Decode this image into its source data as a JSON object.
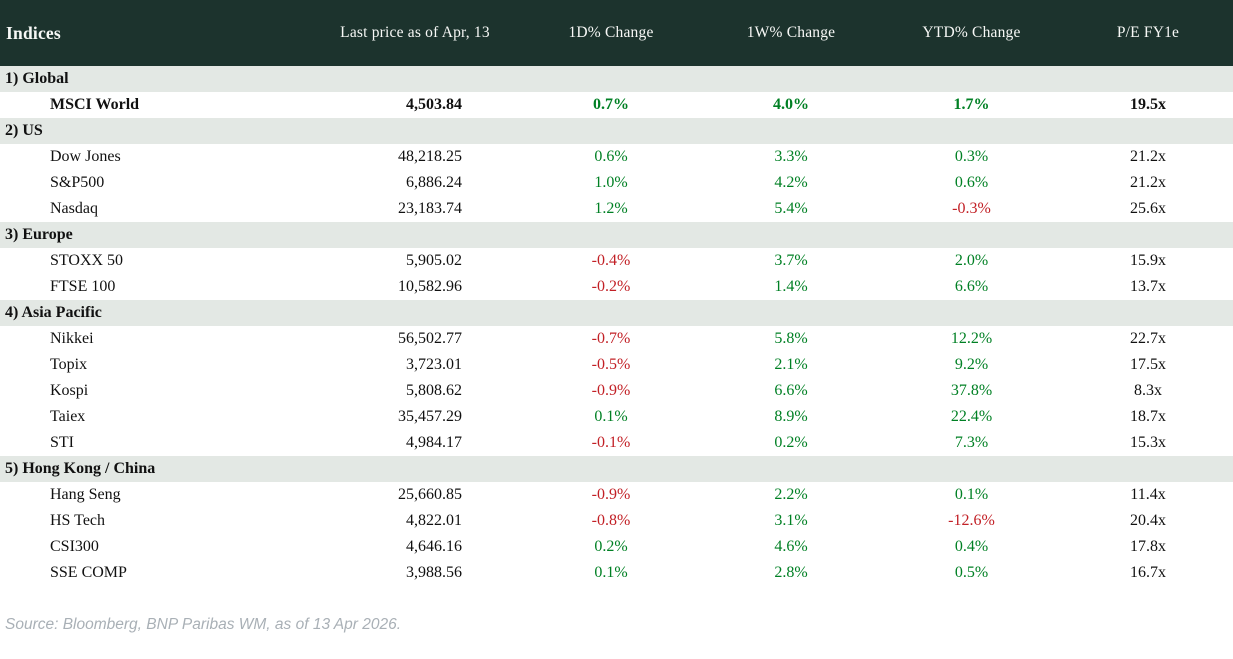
{
  "header": {
    "title": "Indices",
    "columns": [
      "Last price as of Apr, 13",
      "1D% Change",
      "1W% Change",
      "YTD% Change",
      "P/E FY1e"
    ]
  },
  "sections": [
    {
      "label": "1) Global",
      "rows": [
        {
          "name": "MSCI World",
          "bold": true,
          "price": "4,503.84",
          "d1": "0.7%",
          "w1": "4.0%",
          "ytd": "1.7%",
          "pe": "19.5x"
        }
      ]
    },
    {
      "label": "2) US",
      "rows": [
        {
          "name": "Dow Jones",
          "bold": false,
          "price": "48,218.25",
          "d1": "0.6%",
          "w1": "3.3%",
          "ytd": "0.3%",
          "pe": "21.2x"
        },
        {
          "name": "S&P500",
          "bold": false,
          "price": "6,886.24",
          "d1": "1.0%",
          "w1": "4.2%",
          "ytd": "0.6%",
          "pe": "21.2x"
        },
        {
          "name": "Nasdaq",
          "bold": false,
          "price": "23,183.74",
          "d1": "1.2%",
          "w1": "5.4%",
          "ytd": "-0.3%",
          "pe": "25.6x"
        }
      ]
    },
    {
      "label": "3) Europe",
      "rows": [
        {
          "name": "STOXX 50",
          "bold": false,
          "price": "5,905.02",
          "d1": "-0.4%",
          "w1": "3.7%",
          "ytd": "2.0%",
          "pe": "15.9x"
        },
        {
          "name": "FTSE 100",
          "bold": false,
          "price": "10,582.96",
          "d1": "-0.2%",
          "w1": "1.4%",
          "ytd": "6.6%",
          "pe": "13.7x"
        }
      ]
    },
    {
      "label": "4) Asia Pacific",
      "rows": [
        {
          "name": "Nikkei",
          "bold": false,
          "price": "56,502.77",
          "d1": "-0.7%",
          "w1": "5.8%",
          "ytd": "12.2%",
          "pe": "22.7x"
        },
        {
          "name": "Topix",
          "bold": false,
          "price": "3,723.01",
          "d1": "-0.5%",
          "w1": "2.1%",
          "ytd": "9.2%",
          "pe": "17.5x"
        },
        {
          "name": "Kospi",
          "bold": false,
          "price": "5,808.62",
          "d1": "-0.9%",
          "w1": "6.6%",
          "ytd": "37.8%",
          "pe": "8.3x"
        },
        {
          "name": "Taiex",
          "bold": false,
          "price": "35,457.29",
          "d1": "0.1%",
          "w1": "8.9%",
          "ytd": "22.4%",
          "pe": "18.7x"
        },
        {
          "name": "STI",
          "bold": false,
          "price": "4,984.17",
          "d1": "-0.1%",
          "w1": "0.2%",
          "ytd": "7.3%",
          "pe": "15.3x"
        }
      ]
    },
    {
      "label": "5) Hong Kong / China",
      "rows": [
        {
          "name": "Hang Seng",
          "bold": false,
          "price": "25,660.85",
          "d1": "-0.9%",
          "w1": "2.2%",
          "ytd": "0.1%",
          "pe": "11.4x"
        },
        {
          "name": "HS Tech",
          "bold": false,
          "price": "4,822.01",
          "d1": "-0.8%",
          "w1": "3.1%",
          "ytd": "-12.6%",
          "pe": "20.4x"
        },
        {
          "name": "CSI300",
          "bold": false,
          "price": "4,646.16",
          "d1": "0.2%",
          "w1": "4.6%",
          "ytd": "0.4%",
          "pe": "17.8x"
        },
        {
          "name": "SSE COMP",
          "bold": false,
          "price": "3,988.56",
          "d1": "0.1%",
          "w1": "2.8%",
          "ytd": "0.5%",
          "pe": "16.7x"
        }
      ]
    }
  ],
  "footer": {
    "source": "Source: Bloomberg, BNP Paribas WM, as of 13 Apr 2026."
  },
  "colors": {
    "header_bg": "#1c332d",
    "band_bg": "#e3e8e4",
    "positive": "#008024",
    "negative": "#c22026",
    "header_text": "#f7f8f6",
    "body_text": "#111111",
    "footer_text": "#a9b0b6"
  },
  "chart_data": {
    "type": "table",
    "title": "Indices",
    "columns": [
      "Indices",
      "Last price as of Apr, 13",
      "1D% Change",
      "1W% Change",
      "YTD% Change",
      "P/E FY1e"
    ],
    "rows": [
      {
        "section": "1) Global",
        "index": "MSCI World",
        "last_price": 4503.84,
        "d1_pct": 0.7,
        "w1_pct": 4.0,
        "ytd_pct": 1.7,
        "pe_fy1e": 19.5
      },
      {
        "section": "2) US",
        "index": "Dow Jones",
        "last_price": 48218.25,
        "d1_pct": 0.6,
        "w1_pct": 3.3,
        "ytd_pct": 0.3,
        "pe_fy1e": 21.2
      },
      {
        "section": "2) US",
        "index": "S&P500",
        "last_price": 6886.24,
        "d1_pct": 1.0,
        "w1_pct": 4.2,
        "ytd_pct": 0.6,
        "pe_fy1e": 21.2
      },
      {
        "section": "2) US",
        "index": "Nasdaq",
        "last_price": 23183.74,
        "d1_pct": 1.2,
        "w1_pct": 5.4,
        "ytd_pct": -0.3,
        "pe_fy1e": 25.6
      },
      {
        "section": "3) Europe",
        "index": "STOXX 50",
        "last_price": 5905.02,
        "d1_pct": -0.4,
        "w1_pct": 3.7,
        "ytd_pct": 2.0,
        "pe_fy1e": 15.9
      },
      {
        "section": "3) Europe",
        "index": "FTSE 100",
        "last_price": 10582.96,
        "d1_pct": -0.2,
        "w1_pct": 1.4,
        "ytd_pct": 6.6,
        "pe_fy1e": 13.7
      },
      {
        "section": "4) Asia Pacific",
        "index": "Nikkei",
        "last_price": 56502.77,
        "d1_pct": -0.7,
        "w1_pct": 5.8,
        "ytd_pct": 12.2,
        "pe_fy1e": 22.7
      },
      {
        "section": "4) Asia Pacific",
        "index": "Topix",
        "last_price": 3723.01,
        "d1_pct": -0.5,
        "w1_pct": 2.1,
        "ytd_pct": 9.2,
        "pe_fy1e": 17.5
      },
      {
        "section": "4) Asia Pacific",
        "index": "Kospi",
        "last_price": 5808.62,
        "d1_pct": -0.9,
        "w1_pct": 6.6,
        "ytd_pct": 37.8,
        "pe_fy1e": 8.3
      },
      {
        "section": "4) Asia Pacific",
        "index": "Taiex",
        "last_price": 35457.29,
        "d1_pct": 0.1,
        "w1_pct": 8.9,
        "ytd_pct": 22.4,
        "pe_fy1e": 18.7
      },
      {
        "section": "4) Asia Pacific",
        "index": "STI",
        "last_price": 4984.17,
        "d1_pct": -0.1,
        "w1_pct": 0.2,
        "ytd_pct": 7.3,
        "pe_fy1e": 15.3
      },
      {
        "section": "5) Hong Kong / China",
        "index": "Hang Seng",
        "last_price": 25660.85,
        "d1_pct": -0.9,
        "w1_pct": 2.2,
        "ytd_pct": 0.1,
        "pe_fy1e": 11.4
      },
      {
        "section": "5) Hong Kong / China",
        "index": "HS Tech",
        "last_price": 4822.01,
        "d1_pct": -0.8,
        "w1_pct": 3.1,
        "ytd_pct": -12.6,
        "pe_fy1e": 20.4
      },
      {
        "section": "5) Hong Kong / China",
        "index": "CSI300",
        "last_price": 4646.16,
        "d1_pct": 0.2,
        "w1_pct": 4.6,
        "ytd_pct": 0.4,
        "pe_fy1e": 17.8
      },
      {
        "section": "5) Hong Kong / China",
        "index": "SSE COMP",
        "last_price": 3988.56,
        "d1_pct": 0.1,
        "w1_pct": 2.8,
        "ytd_pct": 0.5,
        "pe_fy1e": 16.7
      }
    ],
    "notes": "Positive changes shown in green, negative in red."
  }
}
